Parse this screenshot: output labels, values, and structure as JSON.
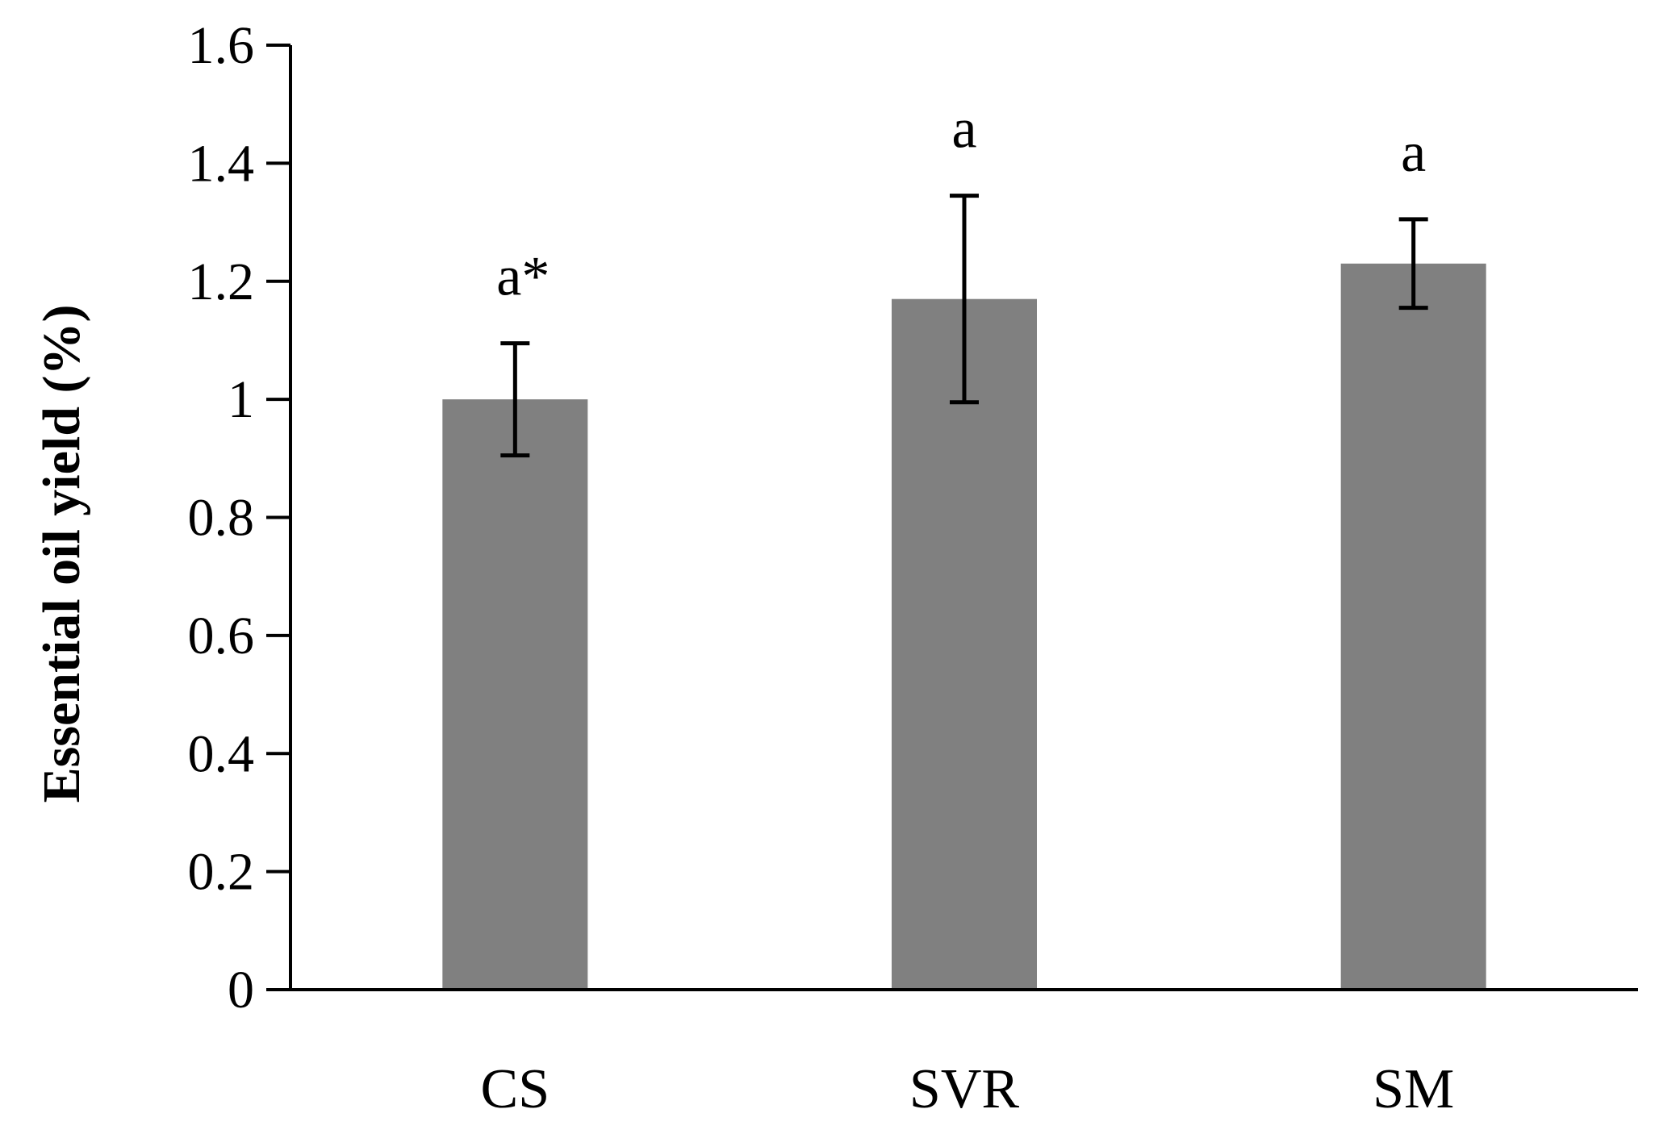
{
  "chart_data": {
    "type": "bar",
    "title": "",
    "xlabel": "",
    "ylabel": "Essential oil yield (%)",
    "categories": [
      "CS",
      "SVR",
      "SM"
    ],
    "values": [
      1.0,
      1.17,
      1.23
    ],
    "error": [
      0.095,
      0.175,
      0.075
    ],
    "significance_labels": [
      "a*",
      "a",
      "a"
    ],
    "ylim": [
      0,
      1.6
    ],
    "yticks": [
      0,
      0.2,
      0.4,
      0.6,
      0.8,
      1.0,
      1.2,
      1.4,
      1.6
    ],
    "ytick_labels": [
      "0",
      "0.2",
      "0.4",
      "0.6",
      "0.8",
      "1",
      "1.2",
      "1.4",
      "1.6"
    ],
    "grid": false,
    "legend": "none",
    "colors": {
      "bar": "#808080",
      "axis": "#000000",
      "error_bar": "#000000",
      "background": "#ffffff"
    }
  }
}
